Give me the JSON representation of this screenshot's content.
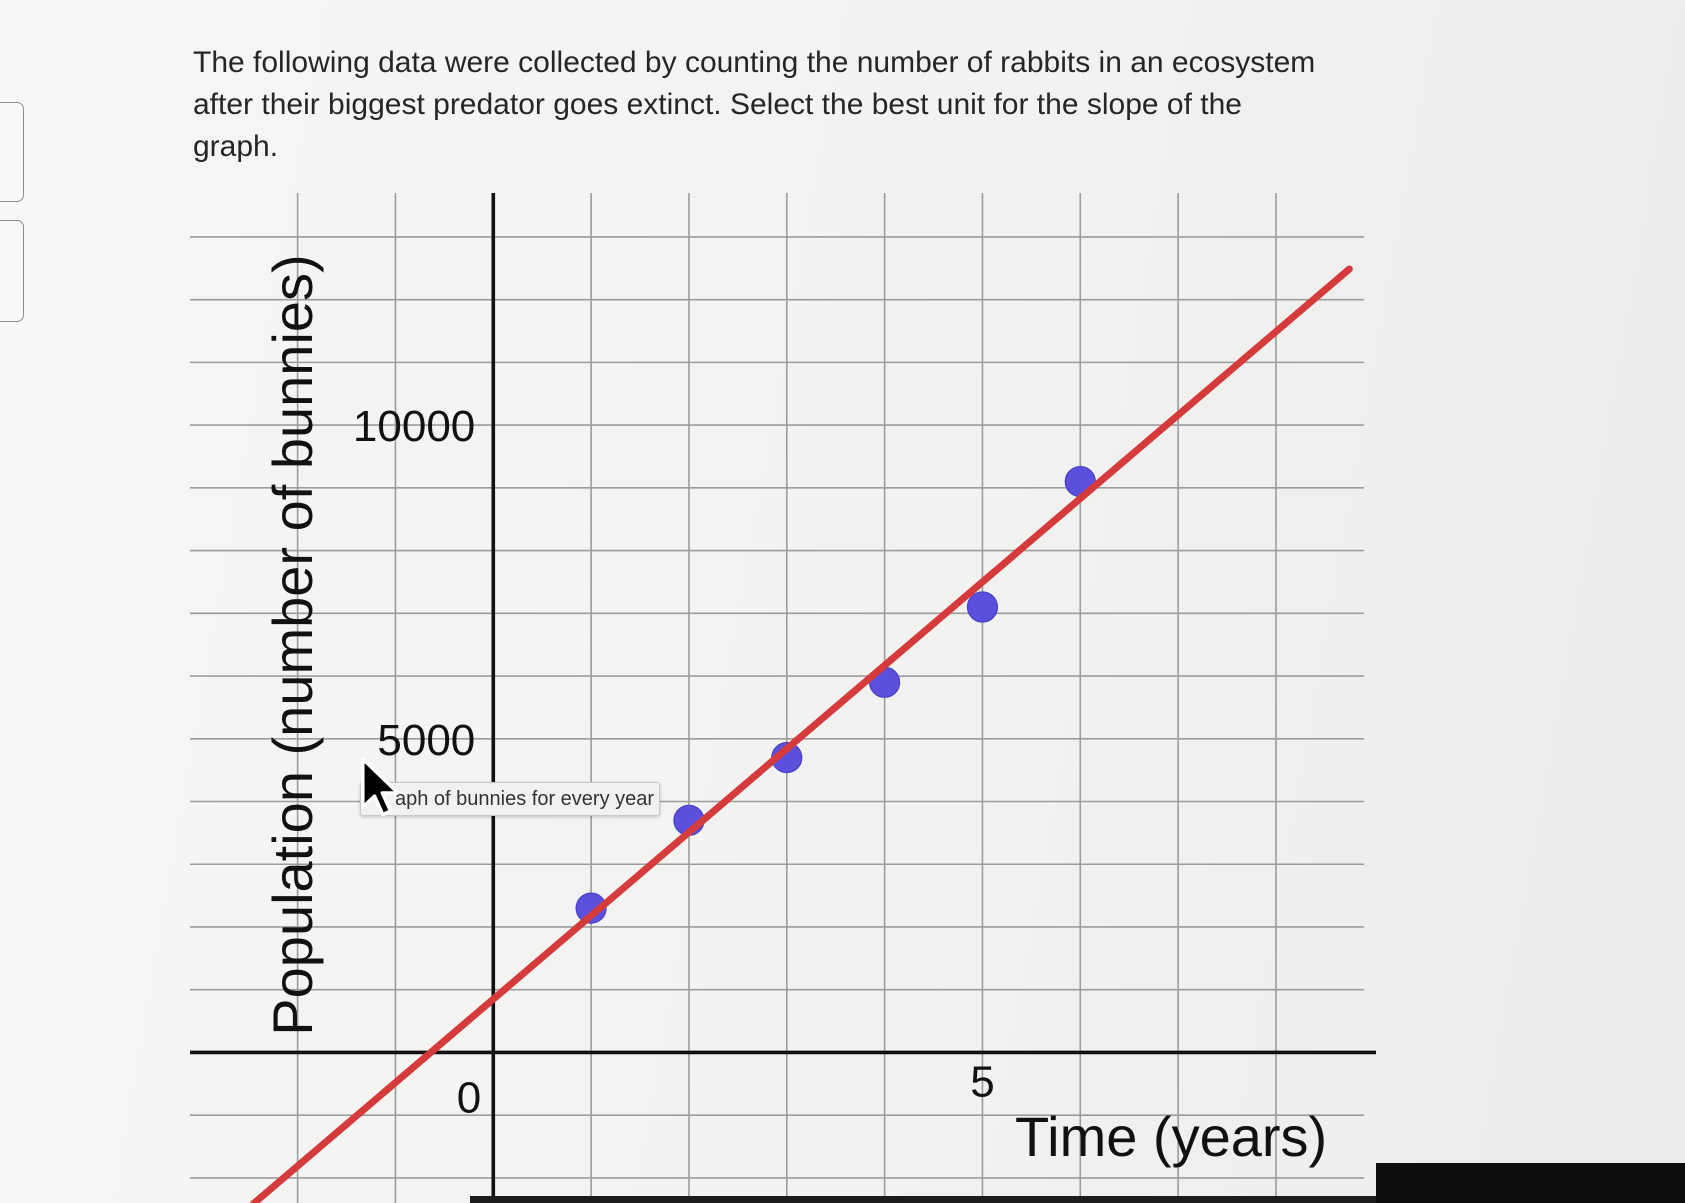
{
  "question": {
    "lines": [
      "The following data were collected by counting the number of rabbits in an ecosystem",
      "after their biggest predator goes extinct. Select the best unit for the slope of the",
      "graph."
    ]
  },
  "tooltip": {
    "text": "aph of bunnies for every year"
  },
  "icons": {
    "cursor": "arrow-cursor-icon"
  },
  "colors": {
    "grid": "#9c9c9c",
    "axes": "#111111",
    "points": "#5a50dd",
    "points_stroke": "#4a40c4",
    "fit_line": "#d63a3a"
  },
  "chart_data": {
    "type": "scatter",
    "xlabel": "Time (years)",
    "ylabel": "Population (number of bunnies)",
    "xlim": [
      -3.1,
      8.9
    ],
    "ylim": [
      -2400,
      13700
    ],
    "grid": true,
    "grid_step": {
      "x": 1,
      "y": 1000
    },
    "x_ticks": [
      {
        "value": 0,
        "label": "0"
      },
      {
        "value": 5,
        "label": "5"
      }
    ],
    "y_ticks": [
      {
        "value": 5000,
        "label": "5000"
      },
      {
        "value": 10000,
        "label": "10000"
      }
    ],
    "series": [
      {
        "type": "scatter",
        "x": [
          1,
          2,
          3,
          4,
          5,
          6
        ],
        "y": [
          2300,
          3700,
          4700,
          5900,
          7100,
          9100
        ]
      },
      {
        "type": "line",
        "x": [
          -2.45,
          8.75
        ],
        "y": [
          -2409,
          12488
        ]
      }
    ]
  }
}
